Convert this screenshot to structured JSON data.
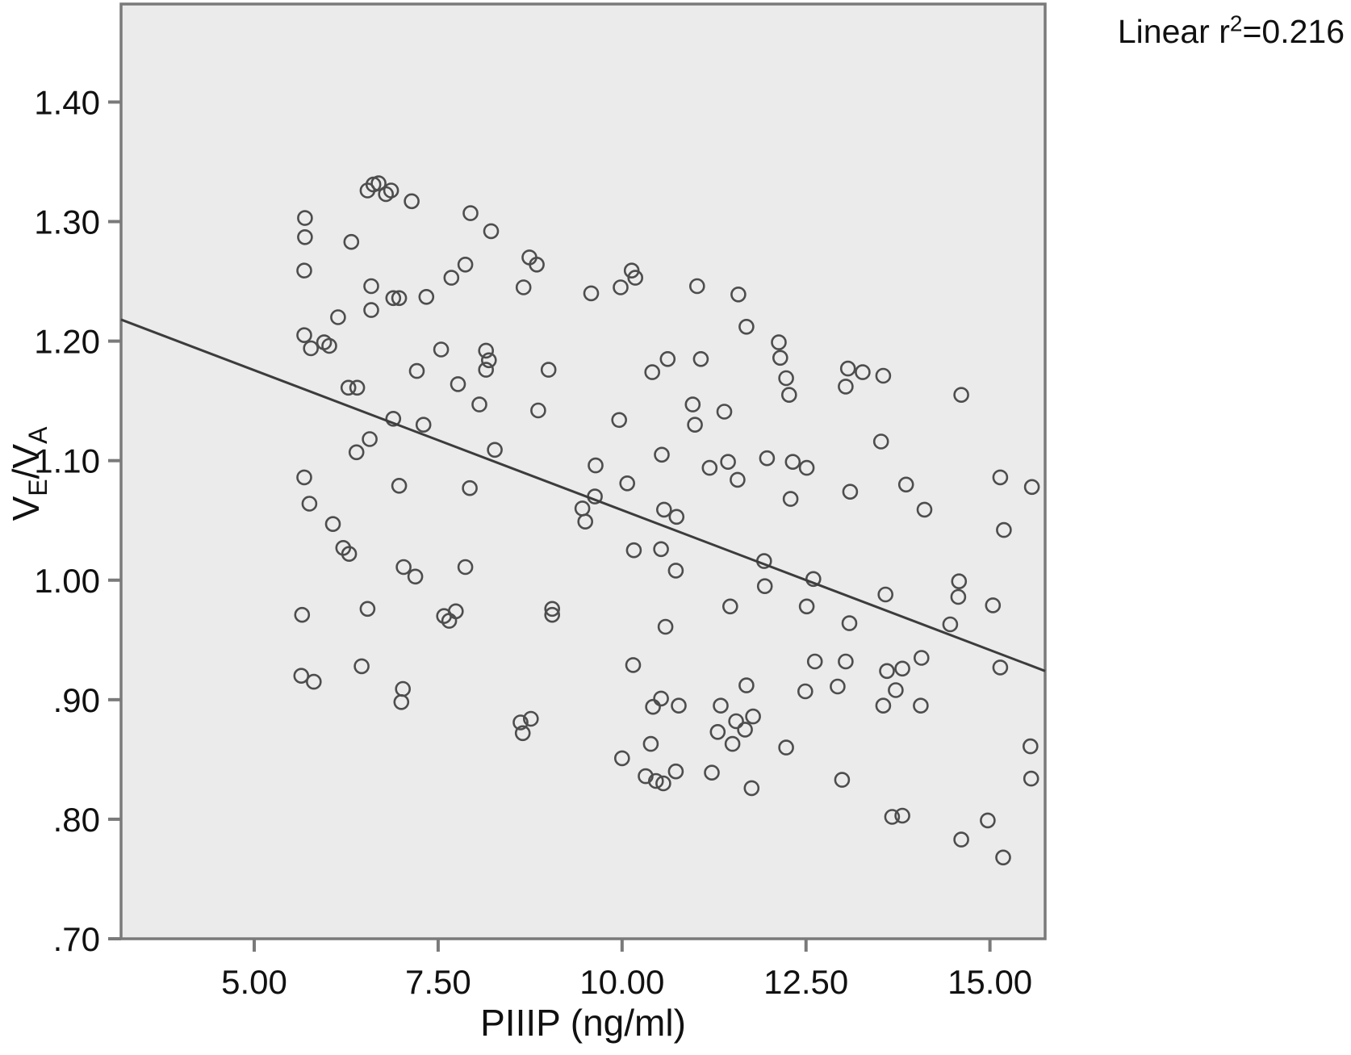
{
  "annotation": {
    "prefix": "Linear r",
    "sup": "2",
    "suffix": "=0.216"
  },
  "axes": {
    "x": {
      "title": "PIIIP (ng/ml)"
    },
    "y": {
      "title_main": "V",
      "title_sub1": "E",
      "title_mid": "/V",
      "title_sub2": "A"
    }
  },
  "colors": {
    "plot_bg": "#ebebeb",
    "frame": "#7a7a7a",
    "marker": "#4d4d4d",
    "line": "#3c3c3c",
    "text": "#111111"
  },
  "chart_data": {
    "type": "scatter",
    "title": "",
    "annotation_text": "Linear r2=0.216",
    "xlabel": "PIIIP (ng/ml)",
    "ylabel": "VE/VA",
    "x_range": [
      3.19,
      15.75
    ],
    "y_range": [
      0.7,
      1.482
    ],
    "grid": false,
    "legend_position": "none",
    "x_ticks": [
      {
        "v": 5.0,
        "label": "5.00"
      },
      {
        "v": 7.5,
        "label": "7.50"
      },
      {
        "v": 10.0,
        "label": "10.00"
      },
      {
        "v": 12.5,
        "label": "12.50"
      },
      {
        "v": 15.0,
        "label": "15.00"
      }
    ],
    "y_ticks": [
      {
        "v": 0.7,
        "label": ".70"
      },
      {
        "v": 0.8,
        "label": ".80"
      },
      {
        "v": 0.9,
        "label": ".90"
      },
      {
        "v": 1.0,
        "label": "1.00"
      },
      {
        "v": 1.1,
        "label": "1.10"
      },
      {
        "v": 1.2,
        "label": "1.20"
      },
      {
        "v": 1.3,
        "label": "1.30"
      },
      {
        "v": 1.4,
        "label": "1.40"
      }
    ],
    "fit_line": {
      "x1": 3.19,
      "y1": 1.218,
      "x2": 15.75,
      "y2": 0.924
    },
    "points": [
      [
        6.54,
        1.326
      ],
      [
        6.62,
        1.331
      ],
      [
        6.69,
        1.332
      ],
      [
        6.79,
        1.323
      ],
      [
        6.86,
        1.326
      ],
      [
        7.14,
        1.317
      ],
      [
        5.69,
        1.303
      ],
      [
        5.69,
        1.287
      ],
      [
        6.32,
        1.283
      ],
      [
        5.68,
        1.259
      ],
      [
        6.59,
        1.246
      ],
      [
        6.59,
        1.226
      ],
      [
        6.89,
        1.236
      ],
      [
        6.97,
        1.236
      ],
      [
        6.14,
        1.22
      ],
      [
        7.34,
        1.237
      ],
      [
        7.94,
        1.307
      ],
      [
        8.22,
        1.292
      ],
      [
        8.74,
        1.27
      ],
      [
        8.84,
        1.264
      ],
      [
        7.87,
        1.264
      ],
      [
        7.68,
        1.253
      ],
      [
        8.66,
        1.245
      ],
      [
        9.58,
        1.24
      ],
      [
        9.98,
        1.245
      ],
      [
        10.13,
        1.259
      ],
      [
        10.18,
        1.253
      ],
      [
        11.02,
        1.246
      ],
      [
        11.58,
        1.239
      ],
      [
        5.68,
        1.205
      ],
      [
        5.77,
        1.194
      ],
      [
        5.95,
        1.199
      ],
      [
        6.02,
        1.196
      ],
      [
        7.21,
        1.175
      ],
      [
        6.28,
        1.161
      ],
      [
        6.4,
        1.161
      ],
      [
        6.89,
        1.135
      ],
      [
        7.3,
        1.13
      ],
      [
        6.57,
        1.118
      ],
      [
        6.39,
        1.107
      ],
      [
        5.68,
        1.086
      ],
      [
        6.97,
        1.079
      ],
      [
        5.75,
        1.064
      ],
      [
        6.07,
        1.047
      ],
      [
        6.21,
        1.027
      ],
      [
        6.29,
        1.022
      ],
      [
        7.03,
        1.011
      ],
      [
        7.19,
        1.003
      ],
      [
        6.54,
        0.976
      ],
      [
        5.65,
        0.971
      ],
      [
        7.54,
        1.193
      ],
      [
        8.15,
        1.192
      ],
      [
        8.19,
        1.184
      ],
      [
        8.15,
        1.176
      ],
      [
        7.77,
        1.164
      ],
      [
        9.0,
        1.176
      ],
      [
        8.06,
        1.147
      ],
      [
        10.41,
        1.174
      ],
      [
        10.62,
        1.185
      ],
      [
        11.07,
        1.185
      ],
      [
        8.86,
        1.142
      ],
      [
        9.96,
        1.134
      ],
      [
        10.96,
        1.147
      ],
      [
        10.99,
        1.13
      ],
      [
        11.39,
        1.141
      ],
      [
        8.27,
        1.109
      ],
      [
        9.64,
        1.096
      ],
      [
        10.54,
        1.105
      ],
      [
        11.19,
        1.094
      ],
      [
        11.44,
        1.099
      ],
      [
        11.57,
        1.084
      ],
      [
        7.93,
        1.077
      ],
      [
        10.07,
        1.081
      ],
      [
        9.63,
        1.07
      ],
      [
        9.46,
        1.06
      ],
      [
        9.5,
        1.049
      ],
      [
        10.57,
        1.059
      ],
      [
        10.74,
        1.053
      ],
      [
        10.16,
        1.025
      ],
      [
        10.53,
        1.026
      ],
      [
        10.73,
        1.008
      ],
      [
        7.87,
        1.011
      ],
      [
        7.58,
        0.97
      ],
      [
        7.74,
        0.974
      ],
      [
        7.65,
        0.966
      ],
      [
        9.05,
        0.976
      ],
      [
        9.05,
        0.971
      ],
      [
        11.47,
        0.978
      ],
      [
        11.69,
        1.212
      ],
      [
        12.13,
        1.199
      ],
      [
        12.15,
        1.186
      ],
      [
        12.23,
        1.169
      ],
      [
        12.27,
        1.155
      ],
      [
        13.07,
        1.177
      ],
      [
        13.27,
        1.174
      ],
      [
        13.04,
        1.162
      ],
      [
        13.55,
        1.171
      ],
      [
        14.61,
        1.155
      ],
      [
        13.52,
        1.116
      ],
      [
        11.97,
        1.102
      ],
      [
        12.32,
        1.099
      ],
      [
        12.51,
        1.094
      ],
      [
        13.1,
        1.074
      ],
      [
        13.86,
        1.08
      ],
      [
        15.14,
        1.086
      ],
      [
        15.57,
        1.078
      ],
      [
        12.29,
        1.068
      ],
      [
        14.11,
        1.059
      ],
      [
        15.19,
        1.042
      ],
      [
        11.93,
        1.016
      ],
      [
        11.94,
        0.995
      ],
      [
        12.6,
        1.001
      ],
      [
        12.51,
        0.978
      ],
      [
        13.58,
        0.988
      ],
      [
        14.58,
        0.999
      ],
      [
        14.57,
        0.986
      ],
      [
        15.04,
        0.979
      ],
      [
        13.09,
        0.964
      ],
      [
        14.46,
        0.963
      ],
      [
        5.64,
        0.92
      ],
      [
        5.81,
        0.915
      ],
      [
        6.46,
        0.928
      ],
      [
        7.02,
        0.909
      ],
      [
        7.0,
        0.898
      ],
      [
        10.59,
        0.961
      ],
      [
        10.15,
        0.929
      ],
      [
        10.42,
        0.894
      ],
      [
        10.53,
        0.901
      ],
      [
        10.77,
        0.895
      ],
      [
        11.34,
        0.895
      ],
      [
        8.62,
        0.881
      ],
      [
        8.76,
        0.884
      ],
      [
        8.65,
        0.872
      ],
      [
        11.3,
        0.873
      ],
      [
        10.39,
        0.863
      ],
      [
        10.0,
        0.851
      ],
      [
        10.32,
        0.836
      ],
      [
        10.46,
        0.832
      ],
      [
        10.56,
        0.83
      ],
      [
        10.73,
        0.84
      ],
      [
        11.22,
        0.839
      ],
      [
        12.62,
        0.932
      ],
      [
        13.04,
        0.932
      ],
      [
        13.6,
        0.924
      ],
      [
        13.81,
        0.926
      ],
      [
        14.07,
        0.935
      ],
      [
        11.69,
        0.912
      ],
      [
        12.49,
        0.907
      ],
      [
        12.93,
        0.911
      ],
      [
        13.72,
        0.908
      ],
      [
        13.55,
        0.895
      ],
      [
        14.06,
        0.895
      ],
      [
        11.55,
        0.882
      ],
      [
        11.78,
        0.886
      ],
      [
        11.67,
        0.875
      ],
      [
        11.5,
        0.863
      ],
      [
        12.23,
        0.86
      ],
      [
        15.14,
        0.927
      ],
      [
        15.55,
        0.861
      ],
      [
        15.56,
        0.834
      ],
      [
        12.99,
        0.833
      ],
      [
        11.76,
        0.826
      ],
      [
        13.67,
        0.802
      ],
      [
        13.81,
        0.803
      ],
      [
        14.97,
        0.799
      ],
      [
        14.61,
        0.783
      ],
      [
        15.18,
        0.768
      ]
    ]
  }
}
